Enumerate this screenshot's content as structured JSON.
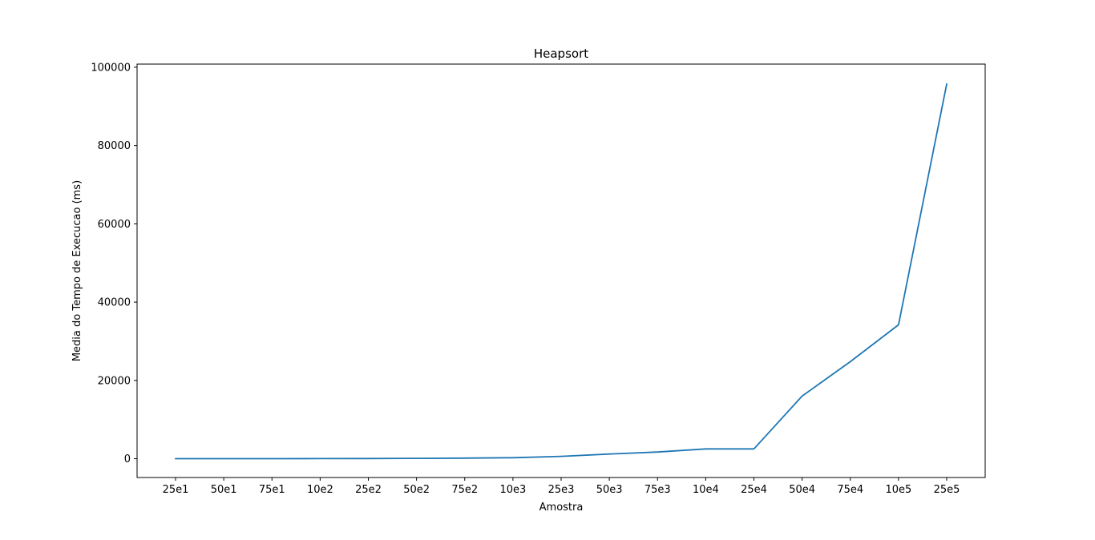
{
  "chart_data": {
    "type": "line",
    "title": "Heapsort",
    "xlabel": "Amostra",
    "ylabel": "Media do Tempo de Execucao (ms)",
    "categories": [
      "25e1",
      "50e1",
      "75e1",
      "10e2",
      "25e2",
      "50e2",
      "75e2",
      "10e3",
      "25e3",
      "50e3",
      "75e3",
      "10e4",
      "25e4",
      "50e4",
      "75e4",
      "10e5",
      "25e5"
    ],
    "series": [
      {
        "color": "#1f77b4",
        "values": [
          0,
          0,
          0,
          20,
          50,
          100,
          150,
          250,
          600,
          1200,
          1700,
          2500,
          2500,
          16000,
          24800,
          34200,
          95700
        ]
      }
    ],
    "yticks": [
      "0",
      "20000",
      "40000",
      "60000",
      "80000",
      "100000"
    ],
    "ylim": [
      -4800,
      100800
    ],
    "grid": false,
    "legend": "none"
  }
}
